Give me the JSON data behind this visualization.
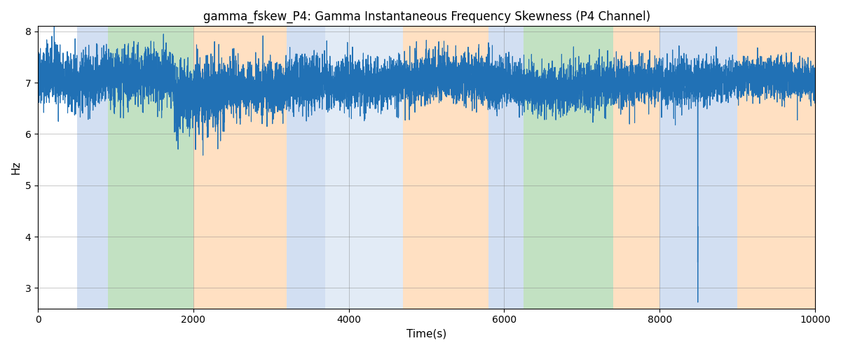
{
  "title": "gamma_fskew_P4: Gamma Instantaneous Frequency Skewness (P4 Channel)",
  "xlabel": "Time(s)",
  "ylabel": "Hz",
  "xlim": [
    0,
    10000
  ],
  "ylim": [
    2.6,
    8.1
  ],
  "yticks": [
    3,
    4,
    5,
    6,
    7,
    8
  ],
  "xticks": [
    0,
    2000,
    4000,
    6000,
    8000,
    10000
  ],
  "line_color": "#2171b5",
  "line_width": 0.8,
  "seed": 42,
  "n_points": 10000,
  "background_regions": [
    {
      "xstart": 500,
      "xend": 900,
      "color": "#aec6e8",
      "alpha": 0.55
    },
    {
      "xstart": 900,
      "xend": 2000,
      "color": "#90c990",
      "alpha": 0.55
    },
    {
      "xstart": 2000,
      "xend": 3200,
      "color": "#ffc890",
      "alpha": 0.55
    },
    {
      "xstart": 3200,
      "xend": 3700,
      "color": "#aec6e8",
      "alpha": 0.55
    },
    {
      "xstart": 3700,
      "xend": 4700,
      "color": "#aec6e8",
      "alpha": 0.35
    },
    {
      "xstart": 4700,
      "xend": 5800,
      "color": "#ffc890",
      "alpha": 0.55
    },
    {
      "xstart": 5800,
      "xend": 6250,
      "color": "#aec6e8",
      "alpha": 0.55
    },
    {
      "xstart": 6250,
      "xend": 7400,
      "color": "#90c990",
      "alpha": 0.55
    },
    {
      "xstart": 7400,
      "xend": 8000,
      "color": "#ffc890",
      "alpha": 0.55
    },
    {
      "xstart": 8000,
      "xend": 9000,
      "color": "#aec6e8",
      "alpha": 0.55
    },
    {
      "xstart": 9000,
      "xend": 10000,
      "color": "#ffc890",
      "alpha": 0.55
    }
  ],
  "figsize": [
    12,
    5
  ],
  "dpi": 100
}
